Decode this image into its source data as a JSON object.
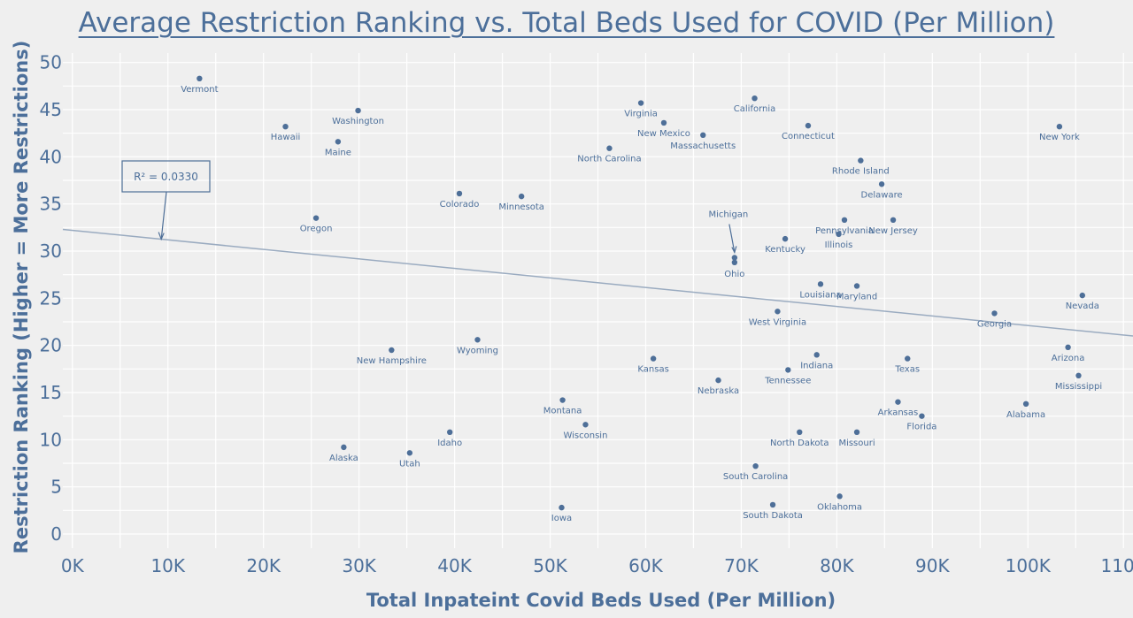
{
  "chart_data": {
    "type": "scatter",
    "title": "Average Restriction Ranking vs. Total Beds Used for COVID (Per Million)",
    "xlabel": "Total Inpateint Covid Beds Used (Per Million)",
    "ylabel": "Restriction Ranking (Higher = More Restrictions)",
    "xlim": [
      -1000,
      111000
    ],
    "ylim": [
      -1.5,
      51
    ],
    "x_ticks": [
      0,
      10000,
      20000,
      30000,
      40000,
      50000,
      60000,
      70000,
      80000,
      90000,
      100000,
      110000
    ],
    "x_tick_labels": [
      "0K",
      "10K",
      "20K",
      "30K",
      "40K",
      "50K",
      "60K",
      "70K",
      "80K",
      "90K",
      "100K",
      "110K"
    ],
    "y_ticks": [
      0,
      5,
      10,
      15,
      20,
      25,
      30,
      35,
      40,
      45,
      50
    ],
    "y_tick_labels": [
      "0",
      "5",
      "10",
      "15",
      "20",
      "25",
      "30",
      "35",
      "40",
      "45",
      "50"
    ],
    "grid": true,
    "trend_line": {
      "x": [
        -1000,
        111000
      ],
      "y": [
        32.3,
        21.0
      ],
      "r_squared_label": "R² = 0.0330"
    },
    "points": [
      {
        "label": "Vermont",
        "x": 13300,
        "y": 48.3
      },
      {
        "label": "Washington",
        "x": 29900,
        "y": 44.9
      },
      {
        "label": "Hawaii",
        "x": 22300,
        "y": 43.2
      },
      {
        "label": "Maine",
        "x": 27800,
        "y": 41.6
      },
      {
        "label": "Oregon",
        "x": 25500,
        "y": 33.5
      },
      {
        "label": "Colorado",
        "x": 40500,
        "y": 36.1
      },
      {
        "label": "Minnesota",
        "x": 47000,
        "y": 35.8
      },
      {
        "label": "Virginia",
        "x": 59500,
        "y": 45.7
      },
      {
        "label": "New Mexico",
        "x": 61900,
        "y": 43.6
      },
      {
        "label": "Massachusetts",
        "x": 66000,
        "y": 42.3
      },
      {
        "label": "North Carolina",
        "x": 56200,
        "y": 40.9
      },
      {
        "label": "California",
        "x": 71400,
        "y": 46.2
      },
      {
        "label": "Connecticut",
        "x": 77000,
        "y": 43.3
      },
      {
        "label": "New York",
        "x": 103300,
        "y": 43.2
      },
      {
        "label": "Rhode Island",
        "x": 82500,
        "y": 39.6
      },
      {
        "label": "Delaware",
        "x": 84700,
        "y": 37.1
      },
      {
        "label": "Pennsylvania",
        "x": 80800,
        "y": 33.3
      },
      {
        "label": "New Jersey",
        "x": 85900,
        "y": 33.3
      },
      {
        "label": "Illinois",
        "x": 80200,
        "y": 31.8
      },
      {
        "label": "Kentucky",
        "x": 74600,
        "y": 31.3
      },
      {
        "label": "Michigan",
        "x": 69300,
        "y": 29.3
      },
      {
        "label": "Ohio",
        "x": 69300,
        "y": 28.8
      },
      {
        "label": "Louisiana",
        "x": 78300,
        "y": 26.5
      },
      {
        "label": "Maryland",
        "x": 82100,
        "y": 26.3
      },
      {
        "label": "Nevada",
        "x": 105700,
        "y": 25.3
      },
      {
        "label": "West Virginia",
        "x": 73800,
        "y": 23.6
      },
      {
        "label": "Georgia",
        "x": 96500,
        "y": 23.4
      },
      {
        "label": "Wyoming",
        "x": 42400,
        "y": 20.6
      },
      {
        "label": "New Hampshire",
        "x": 33400,
        "y": 19.5
      },
      {
        "label": "Arizona",
        "x": 104200,
        "y": 19.8
      },
      {
        "label": "Indiana",
        "x": 77900,
        "y": 19.0
      },
      {
        "label": "Kansas",
        "x": 60800,
        "y": 18.6
      },
      {
        "label": "Texas",
        "x": 87400,
        "y": 18.6
      },
      {
        "label": "Tennessee",
        "x": 74900,
        "y": 17.4
      },
      {
        "label": "Mississippi",
        "x": 105300,
        "y": 16.8
      },
      {
        "label": "Nebraska",
        "x": 67600,
        "y": 16.3
      },
      {
        "label": "Montana",
        "x": 51300,
        "y": 14.2
      },
      {
        "label": "Arkansas",
        "x": 86400,
        "y": 14.0
      },
      {
        "label": "Alabama",
        "x": 99800,
        "y": 13.8
      },
      {
        "label": "Florida",
        "x": 88900,
        "y": 12.5
      },
      {
        "label": "Wisconsin",
        "x": 53700,
        "y": 11.6
      },
      {
        "label": "Idaho",
        "x": 39500,
        "y": 10.8
      },
      {
        "label": "North Dakota",
        "x": 76100,
        "y": 10.8
      },
      {
        "label": "Missouri",
        "x": 82100,
        "y": 10.8
      },
      {
        "label": "Alaska",
        "x": 28400,
        "y": 9.2
      },
      {
        "label": "Utah",
        "x": 35300,
        "y": 8.6
      },
      {
        "label": "South Carolina",
        "x": 71500,
        "y": 7.2
      },
      {
        "label": "Oklahoma",
        "x": 80300,
        "y": 4.0
      },
      {
        "label": "South Dakota",
        "x": 73300,
        "y": 3.1
      },
      {
        "label": "Iowa",
        "x": 51200,
        "y": 2.8
      }
    ]
  }
}
